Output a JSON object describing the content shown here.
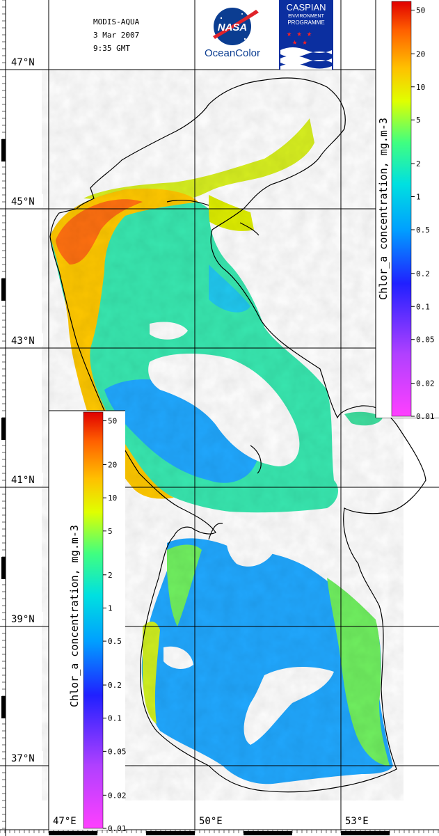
{
  "header": {
    "sensor": "MODIS-AQUA",
    "date": "3 Mar 2007",
    "time": "9:35 GMT"
  },
  "logos": {
    "nasa": {
      "wordmark": "NASA",
      "caption": "OceanColor"
    },
    "cep": {
      "lines": [
        "CASPIAN",
        "ENVIRONMENT",
        "PROGRAMME"
      ]
    }
  },
  "latitude_labels": [
    "47°N",
    "45°N",
    "43°N",
    "41°N",
    "39°N",
    "37°N"
  ],
  "longitude_labels": [
    "47°E",
    "50°E",
    "53°E"
  ],
  "colorbar": {
    "title": "Chlor_a concentration, mg.m-3",
    "ticks": [
      "50",
      "20",
      "10",
      "5",
      "2",
      "1",
      "0.5",
      "0.2",
      "0.1",
      "0.05",
      "0.02",
      "0.01"
    ],
    "scale": "log",
    "range": [
      0.01,
      60
    ],
    "colors": [
      "#ff40ff",
      "#b040ff",
      "#2020ff",
      "#00a0ff",
      "#00e0e0",
      "#40ff80",
      "#e0ff00",
      "#ffc000",
      "#ff6000",
      "#e00000"
    ]
  }
}
